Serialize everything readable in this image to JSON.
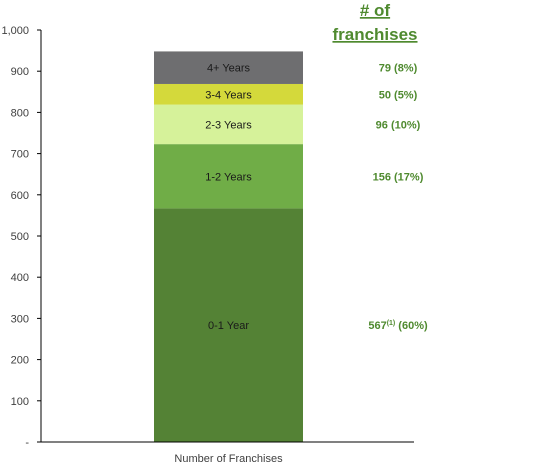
{
  "colors": {
    "count_text": "#4f8a2f",
    "axis": "#000000",
    "tick_text": "#404040"
  },
  "chart_data": {
    "type": "bar",
    "stacked": true,
    "categories": [
      "Number of Franchises"
    ],
    "ylim": [
      0,
      1000
    ],
    "yticks": [
      0,
      100,
      200,
      300,
      400,
      500,
      600,
      700,
      800,
      900,
      1000
    ],
    "ytick_labels": [
      "-",
      "100",
      "200",
      "300",
      "400",
      "500",
      "600",
      "700",
      "800",
      "900",
      "1,000"
    ],
    "grid": false,
    "series": [
      {
        "name": "0-1 Year",
        "values": [
          567
        ],
        "color": "#548235",
        "count_main": "567",
        "count_sup": "(1)",
        "count_pct": " (60%)"
      },
      {
        "name": "1-2 Years",
        "values": [
          156
        ],
        "color": "#70ad47",
        "count_main": "156 (17%)",
        "count_sup": "",
        "count_pct": ""
      },
      {
        "name": "2-3 Years",
        "values": [
          96
        ],
        "color": "#d6f29a",
        "count_main": "96 (10%)",
        "count_sup": "",
        "count_pct": ""
      },
      {
        "name": "3-4 Years",
        "values": [
          50
        ],
        "color": "#d4d93b",
        "count_main": "50 (5%)",
        "count_sup": "",
        "count_pct": ""
      },
      {
        "name": "4+ Years",
        "values": [
          79
        ],
        "color": "#6e6e70",
        "count_main": "79 (8%)",
        "count_sup": "",
        "count_pct": ""
      }
    ],
    "column_header": [
      "# of",
      "franchises"
    ]
  }
}
